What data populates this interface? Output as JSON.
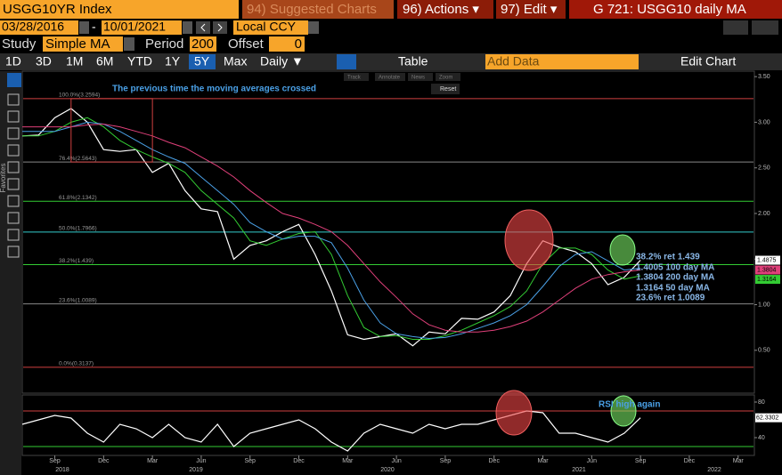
{
  "toolbar": {
    "security": "USGG10YR Index",
    "suggested": "94) Suggested Charts",
    "actions": "96) Actions ▾",
    "edit": "97) Edit ▾",
    "chart_name": "G 721: USGG10 daily MA",
    "start_date": "03/28/2016",
    "end_date": "10/01/2021",
    "currency": "Local CCY",
    "study_label": "Study",
    "study": "Simple MA",
    "period_label": "Period",
    "period": "200",
    "offset_label": "Offset",
    "offset": "0",
    "ranges": [
      "1D",
      "3D",
      "1M",
      "6M",
      "YTD",
      "1Y",
      "5Y",
      "Max"
    ],
    "frequency": "Daily ▼",
    "table": "Table",
    "add_data": "Add Data",
    "edit_chart": "Edit Chart",
    "tools": [
      "Track",
      "Annotate",
      "News",
      "Zoom",
      "Reset"
    ],
    "favorites": "Favorites"
  },
  "chart_data": [
    {
      "type": "line",
      "annotation": "The previous time the moving averages crossed",
      "x": [
        "2018-07",
        "2018-08",
        "2018-09",
        "2018-10",
        "2018-11",
        "2018-12",
        "2019-01",
        "2019-02",
        "2019-03",
        "2019-04",
        "2019-05",
        "2019-06",
        "2019-07",
        "2019-08",
        "2019-09",
        "2019-10",
        "2019-11",
        "2019-12",
        "2020-01",
        "2020-02",
        "2020-03",
        "2020-04",
        "2020-05",
        "2020-06",
        "2020-07",
        "2020-08",
        "2020-09",
        "2020-10",
        "2020-11",
        "2020-12",
        "2021-01",
        "2021-02",
        "2021-03",
        "2021-04",
        "2021-05",
        "2021-06",
        "2021-07",
        "2021-08",
        "2021-09"
      ],
      "xlim": [
        "2018-07",
        "2022-04"
      ],
      "series": [
        {
          "name": "USGG10YR",
          "color": "#ffffff",
          "values": [
            2.85,
            2.86,
            3.05,
            3.15,
            3.0,
            2.7,
            2.68,
            2.7,
            2.45,
            2.55,
            2.25,
            2.05,
            2.02,
            1.5,
            1.65,
            1.7,
            1.8,
            1.88,
            1.55,
            1.15,
            0.67,
            0.62,
            0.65,
            0.68,
            0.55,
            0.7,
            0.68,
            0.85,
            0.84,
            0.92,
            1.1,
            1.45,
            1.7,
            1.63,
            1.58,
            1.45,
            1.22,
            1.3,
            1.4875
          ]
        },
        {
          "name": "50 day MA",
          "color": "#33cc33",
          "values": [
            2.85,
            2.85,
            2.9,
            3.0,
            3.05,
            2.95,
            2.8,
            2.7,
            2.62,
            2.55,
            2.45,
            2.25,
            2.1,
            1.95,
            1.7,
            1.65,
            1.72,
            1.78,
            1.8,
            1.55,
            1.1,
            0.75,
            0.65,
            0.66,
            0.62,
            0.62,
            0.66,
            0.72,
            0.8,
            0.88,
            0.98,
            1.15,
            1.45,
            1.62,
            1.62,
            1.55,
            1.38,
            1.28,
            1.3164
          ]
        },
        {
          "name": "100 day MA",
          "color": "#4aa0e6",
          "values": [
            2.9,
            2.9,
            2.9,
            2.95,
            3.0,
            2.98,
            2.9,
            2.8,
            2.7,
            2.62,
            2.55,
            2.4,
            2.25,
            2.1,
            1.9,
            1.8,
            1.72,
            1.75,
            1.75,
            1.68,
            1.4,
            1.05,
            0.8,
            0.68,
            0.65,
            0.63,
            0.64,
            0.68,
            0.74,
            0.8,
            0.88,
            1.0,
            1.2,
            1.42,
            1.55,
            1.58,
            1.48,
            1.38,
            1.4005
          ]
        },
        {
          "name": "200 day MA",
          "color": "#e0407a",
          "values": [
            2.95,
            2.95,
            2.95,
            2.95,
            2.97,
            2.98,
            2.95,
            2.9,
            2.85,
            2.78,
            2.72,
            2.62,
            2.52,
            2.4,
            2.25,
            2.12,
            2.0,
            1.95,
            1.88,
            1.8,
            1.65,
            1.45,
            1.25,
            1.08,
            0.9,
            0.78,
            0.72,
            0.7,
            0.7,
            0.72,
            0.76,
            0.82,
            0.92,
            1.05,
            1.18,
            1.28,
            1.33,
            1.36,
            1.3804
          ]
        }
      ],
      "last_labels": [
        {
          "value": 1.4875,
          "color": "#ffffff"
        },
        {
          "value": 1.3804,
          "color": "#e0407a"
        },
        {
          "value": 1.3164,
          "color": "#33cc33"
        }
      ],
      "levels": [
        {
          "label": "100.0%(3.2594)",
          "value": 3.2594,
          "color": "#d04040"
        },
        {
          "label": "76.4%(2.5643)",
          "value": 2.5643,
          "color": "#888888"
        },
        {
          "label": "61.8%(2.1342)",
          "value": 2.1342,
          "color": "#33cc33"
        },
        {
          "label": "50.0%(1.7966)",
          "value": 1.7966,
          "color": "#33cccc"
        },
        {
          "label": "38.2%(1.439)",
          "value": 1.439,
          "color": "#33cc33"
        },
        {
          "label": "23.6%(1.0089)",
          "value": 1.0089,
          "color": "#888888"
        },
        {
          "label": "0.0%(0.3137)",
          "value": 0.3137,
          "color": "#d04040"
        }
      ],
      "notes": [
        "38.2% ret 1.439",
        "1.4005 100 day MA",
        "1.3804 200 day MA",
        "1.3164 50 day MA",
        "23.6% ret 1.0089"
      ],
      "ylim": [
        0.03,
        3.56
      ],
      "yticks": [
        {
          "value": 0.5,
          "label": "0.50"
        },
        {
          "value": 1,
          "label": "1.00"
        },
        {
          "value": 1.5,
          "label": "1.50"
        },
        {
          "value": 2,
          "label": "2.00"
        },
        {
          "value": 2.5,
          "label": "2.50"
        },
        {
          "value": 3,
          "label": "3.00"
        },
        {
          "value": 3.5,
          "label": "3.50"
        }
      ]
    },
    {
      "type": "line",
      "annotation": "RSI high again",
      "x": [
        "2018-07",
        "2018-08",
        "2018-09",
        "2018-10",
        "2018-11",
        "2018-12",
        "2019-01",
        "2019-02",
        "2019-03",
        "2019-04",
        "2019-05",
        "2019-06",
        "2019-07",
        "2019-08",
        "2019-09",
        "2019-10",
        "2019-11",
        "2019-12",
        "2020-01",
        "2020-02",
        "2020-03",
        "2020-04",
        "2020-05",
        "2020-06",
        "2020-07",
        "2020-08",
        "2020-09",
        "2020-10",
        "2020-11",
        "2020-12",
        "2021-01",
        "2021-02",
        "2021-03",
        "2021-04",
        "2021-05",
        "2021-06",
        "2021-07",
        "2021-08",
        "2021-09"
      ],
      "xlim": [
        "2018-07",
        "2022-04"
      ],
      "series": [
        {
          "name": "RSI",
          "color": "#ffffff",
          "values": [
            55,
            60,
            65,
            62,
            45,
            35,
            55,
            50,
            40,
            55,
            40,
            35,
            55,
            30,
            45,
            50,
            55,
            60,
            50,
            35,
            25,
            45,
            55,
            50,
            45,
            55,
            50,
            55,
            55,
            60,
            65,
            70,
            68,
            45,
            45,
            40,
            35,
            45,
            62.3302
          ]
        }
      ],
      "levels": [
        {
          "value": 70,
          "color": "#d04040"
        },
        {
          "value": 30,
          "color": "#33cc33"
        }
      ],
      "ylim": [
        20,
        88
      ],
      "yticks": [
        40,
        80
      ],
      "xticks": [
        {
          "value": "2018-09",
          "label": "Sep"
        },
        {
          "value": "2018-12",
          "label": "Dec"
        },
        {
          "value": "2019-03",
          "label": "Mar"
        },
        {
          "value": "2019-06",
          "label": "Jun"
        },
        {
          "value": "2019-09",
          "label": "Sep"
        },
        {
          "value": "2019-12",
          "label": "Dec"
        },
        {
          "value": "2020-03",
          "label": "Mar"
        },
        {
          "value": "2020-06",
          "label": "Jun"
        },
        {
          "value": "2020-09",
          "label": "Sep"
        },
        {
          "value": "2020-12",
          "label": "Dec"
        },
        {
          "value": "2021-03",
          "label": "Mar"
        },
        {
          "value": "2021-06",
          "label": "Jun"
        },
        {
          "value": "2021-09",
          "label": "Sep"
        },
        {
          "value": "2021-12",
          "label": "Dec"
        },
        {
          "value": "2022-03",
          "label": "Mar"
        }
      ],
      "years": [
        "2018",
        "2019",
        "2020",
        "2021",
        "2022"
      ]
    }
  ]
}
